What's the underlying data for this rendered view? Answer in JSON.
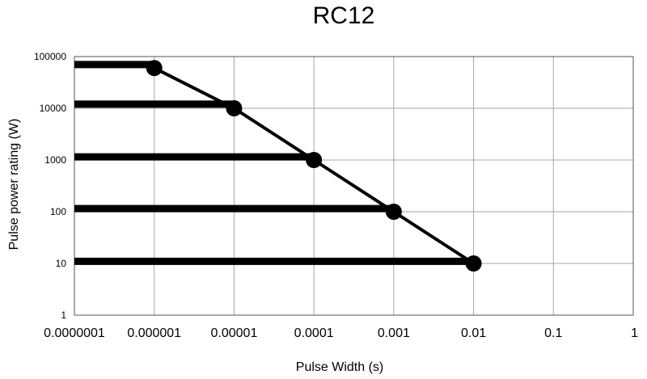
{
  "chart_data": {
    "type": "line",
    "title": "RC12",
    "xlabel": "Pulse Width (s)",
    "ylabel": "Pulse power rating (W)",
    "x_scale": "log",
    "y_scale": "log",
    "xlim": [
      1e-07,
      1
    ],
    "ylim": [
      1,
      100000
    ],
    "x_ticks": [
      "0.0000001",
      "0.000001",
      "0.00001",
      "0.0001",
      "0.001",
      "0.01",
      "0.1",
      "1"
    ],
    "y_ticks": [
      "1",
      "10",
      "100",
      "1000",
      "10000",
      "100000"
    ],
    "grid": true,
    "colors": {
      "line": "#000000",
      "grid": "#a6a6a6",
      "axis": "#555555"
    },
    "series": [
      {
        "values": [
          {
            "x": 1e-06,
            "y": 60000
          },
          {
            "x": 1e-05,
            "y": 10000
          },
          {
            "x": 0.0001,
            "y": 1000
          },
          {
            "x": 0.001,
            "y": 100
          },
          {
            "x": 0.01,
            "y": 10
          }
        ]
      }
    ],
    "horizontal_bars": [
      {
        "x_start": 1e-07,
        "x_end": 1e-06,
        "y": 70000
      },
      {
        "x_start": 1e-07,
        "x_end": 1e-05,
        "y": 12000
      },
      {
        "x_start": 1e-07,
        "x_end": 0.0001,
        "y": 1150
      },
      {
        "x_start": 1e-07,
        "x_end": 0.001,
        "y": 115
      },
      {
        "x_start": 1e-07,
        "x_end": 0.01,
        "y": 11
      }
    ]
  }
}
